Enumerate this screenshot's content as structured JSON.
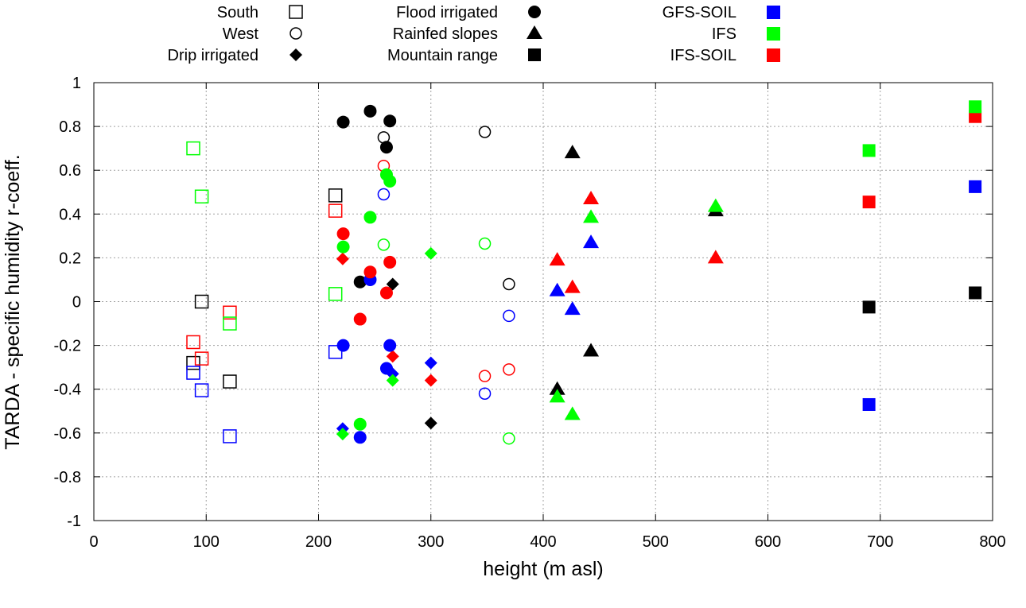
{
  "chart_data": {
    "type": "scatter",
    "title": "",
    "xlabel": "height (m asl)",
    "ylabel": "TARDA - specific humidity r-coeff.",
    "xlim": [
      0,
      800
    ],
    "ylim": [
      -1,
      1
    ],
    "grid": true,
    "x_ticks": [
      0,
      100,
      200,
      300,
      400,
      500,
      600,
      700,
      800
    ],
    "x_tick_labels": [
      "0",
      "100",
      "200",
      "300",
      "400",
      "500",
      "600",
      "700",
      "800"
    ],
    "y_ticks": [
      1,
      0.8,
      0.6,
      0.4,
      0.2,
      0,
      -0.2,
      -0.4,
      -0.6,
      -0.8,
      -1
    ],
    "y_tick_labels": [
      "1",
      "0.8",
      "0.6",
      "0.4",
      "0.2",
      "0",
      "-0.2",
      "-0.4",
      "-0.6",
      "-0.8",
      "-1"
    ],
    "legend_placement": "top-outside",
    "groups": [
      {
        "label": "South",
        "marker": "square-open"
      },
      {
        "label": "West",
        "marker": "circle-open"
      },
      {
        "label": "Drip irrigated",
        "marker": "diamond"
      },
      {
        "label": "Flood irrigated",
        "marker": "circle"
      },
      {
        "label": "Rainfed slopes",
        "marker": "triangle"
      },
      {
        "label": "Mountain range",
        "marker": "square"
      }
    ],
    "models": [
      {
        "label": "TARDA",
        "color": "#000000",
        "in_legend": false
      },
      {
        "label": "IFS-SOIL",
        "color": "#ff0000",
        "in_legend": true
      },
      {
        "label": "IFS",
        "color": "#00ff00",
        "in_legend": true
      },
      {
        "label": "GFS-SOIL",
        "color": "#0000ff",
        "in_legend": true
      }
    ],
    "series": [
      {
        "group": 0,
        "model": 0,
        "points": [
          [
            88.5,
            -0.28
          ],
          [
            96,
            0.0
          ],
          [
            121,
            -0.365
          ],
          [
            215,
            0.485
          ]
        ]
      },
      {
        "group": 0,
        "model": 1,
        "points": [
          [
            88.5,
            -0.185
          ],
          [
            96,
            -0.26
          ],
          [
            121,
            -0.05
          ],
          [
            215,
            0.415
          ]
        ]
      },
      {
        "group": 0,
        "model": 2,
        "points": [
          [
            88.5,
            0.7
          ],
          [
            96,
            0.48
          ],
          [
            121,
            -0.1
          ],
          [
            215,
            0.035
          ]
        ]
      },
      {
        "group": 0,
        "model": 3,
        "points": [
          [
            88.5,
            -0.325
          ],
          [
            96,
            -0.405
          ],
          [
            121,
            -0.615
          ],
          [
            215,
            -0.23
          ]
        ]
      },
      {
        "group": 1,
        "model": 0,
        "points": [
          [
            258,
            0.75
          ],
          [
            348,
            0.775
          ],
          [
            369.5,
            0.08
          ]
        ]
      },
      {
        "group": 1,
        "model": 1,
        "points": [
          [
            258,
            0.62
          ],
          [
            348,
            -0.34
          ],
          [
            369.5,
            -0.31
          ]
        ]
      },
      {
        "group": 1,
        "model": 2,
        "points": [
          [
            258,
            0.26
          ],
          [
            348,
            0.265
          ],
          [
            369.5,
            -0.625
          ]
        ]
      },
      {
        "group": 1,
        "model": 3,
        "points": [
          [
            258,
            0.49
          ],
          [
            348,
            -0.42
          ],
          [
            369.5,
            -0.065
          ]
        ]
      },
      {
        "group": 2,
        "model": 0,
        "points": [
          [
            266,
            0.08
          ],
          [
            300,
            -0.555
          ]
        ]
      },
      {
        "group": 2,
        "model": 1,
        "points": [
          [
            221.5,
            0.195
          ],
          [
            266,
            -0.25
          ],
          [
            300,
            -0.36
          ]
        ]
      },
      {
        "group": 2,
        "model": 3,
        "points": [
          [
            221.5,
            -0.58
          ],
          [
            266,
            -0.33
          ],
          [
            300,
            -0.28
          ]
        ]
      },
      {
        "group": 2,
        "model": 2,
        "points": [
          [
            221.5,
            -0.605
          ],
          [
            266,
            -0.36
          ],
          [
            300,
            0.22
          ]
        ]
      },
      {
        "group": 3,
        "model": 0,
        "points": [
          [
            222,
            0.82
          ],
          [
            246,
            0.87
          ],
          [
            263.5,
            0.825
          ],
          [
            260.5,
            0.705
          ],
          [
            237,
            0.09
          ]
        ]
      },
      {
        "group": 3,
        "model": 3,
        "points": [
          [
            222,
            -0.2
          ],
          [
            246,
            0.1
          ],
          [
            263.5,
            -0.2
          ],
          [
            260.5,
            -0.305
          ],
          [
            237,
            -0.62
          ]
        ]
      },
      {
        "group": 3,
        "model": 1,
        "points": [
          [
            222,
            0.31
          ],
          [
            246,
            0.135
          ],
          [
            263.5,
            0.18
          ],
          [
            260.5,
            0.04
          ],
          [
            237,
            -0.08
          ]
        ]
      },
      {
        "group": 3,
        "model": 2,
        "points": [
          [
            222,
            0.25
          ],
          [
            246,
            0.385
          ],
          [
            263.5,
            0.55
          ],
          [
            260.5,
            0.58
          ],
          [
            237,
            -0.56
          ]
        ]
      },
      {
        "group": 4,
        "model": 0,
        "points": [
          [
            426,
            0.68
          ],
          [
            442.5,
            -0.225
          ],
          [
            412.5,
            -0.4
          ],
          [
            553.5,
            0.415
          ]
        ]
      },
      {
        "group": 4,
        "model": 1,
        "points": [
          [
            412.5,
            0.19
          ],
          [
            426,
            0.065
          ],
          [
            442.5,
            0.47
          ],
          [
            553.5,
            0.2
          ]
        ]
      },
      {
        "group": 4,
        "model": 2,
        "points": [
          [
            412.5,
            -0.435
          ],
          [
            426,
            -0.515
          ],
          [
            442.5,
            0.385
          ],
          [
            553.5,
            0.435
          ]
        ]
      },
      {
        "group": 4,
        "model": 3,
        "points": [
          [
            412.5,
            0.05
          ],
          [
            426,
            -0.035
          ],
          [
            442.5,
            0.27
          ]
        ]
      },
      {
        "group": 5,
        "model": 0,
        "points": [
          [
            690,
            -0.025
          ],
          [
            784.5,
            0.04
          ]
        ]
      },
      {
        "group": 5,
        "model": 1,
        "points": [
          [
            690,
            0.455
          ],
          [
            784.5,
            0.845
          ]
        ]
      },
      {
        "group": 5,
        "model": 2,
        "points": [
          [
            690,
            0.69
          ],
          [
            784.5,
            0.89
          ]
        ]
      },
      {
        "group": 5,
        "model": 3,
        "points": [
          [
            690,
            -0.47
          ],
          [
            784.5,
            0.525
          ]
        ]
      }
    ]
  }
}
